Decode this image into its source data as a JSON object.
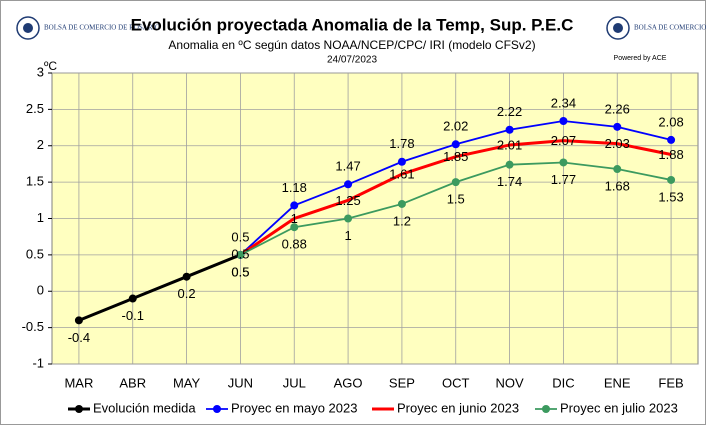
{
  "header": {
    "logo_left": "BOLSA DE COMERCIO DE ROSARIO",
    "logo_right": "BOLSA DE COMERCIO DE ROSARIO",
    "powered": "Powered by ACE"
  },
  "chart_data": {
    "type": "line",
    "title": "Evolución proyectada Anomalia de la Temp, Sup.  P.E.C",
    "subtitle": "Anomalia en ºC según datos NOAA/NCEP/CPC/ IRI (modelo CFSv2)",
    "date": "24/07/2023",
    "y_unit": "ºC",
    "categories": [
      "MAR",
      "ABR",
      "MAY",
      "JUN",
      "JUL",
      "AGO",
      "SEP",
      "OCT",
      "NOV",
      "DIC",
      "ENE",
      "FEB"
    ],
    "series": [
      {
        "name": "Evolución medida",
        "color": "#000000",
        "marker": true,
        "values": [
          -0.4,
          -0.1,
          0.2,
          0.5,
          null,
          null,
          null,
          null,
          null,
          null,
          null,
          null
        ]
      },
      {
        "name": "Proyec en mayo 2023",
        "color": "#0000ff",
        "marker": true,
        "values": [
          null,
          null,
          null,
          0.5,
          1.18,
          1.47,
          1.78,
          2.02,
          2.22,
          2.34,
          2.26,
          2.08
        ]
      },
      {
        "name": "Proyec en junio 2023",
        "color": "#ff0000",
        "marker": false,
        "values": [
          null,
          null,
          null,
          0.5,
          1,
          1.25,
          1.61,
          1.85,
          2.01,
          2.07,
          2.03,
          1.88
        ]
      },
      {
        "name": "Proyec en julio 2023",
        "color": "#3c9a5f",
        "marker": true,
        "values": [
          null,
          null,
          null,
          0.5,
          0.88,
          1,
          1.2,
          1.5,
          1.74,
          1.77,
          1.68,
          1.53
        ]
      }
    ],
    "ylim": [
      -1,
      3
    ],
    "yticks": [
      -1,
      -0.5,
      0,
      0.5,
      1,
      1.5,
      2,
      2.5,
      3
    ],
    "grid": true
  }
}
